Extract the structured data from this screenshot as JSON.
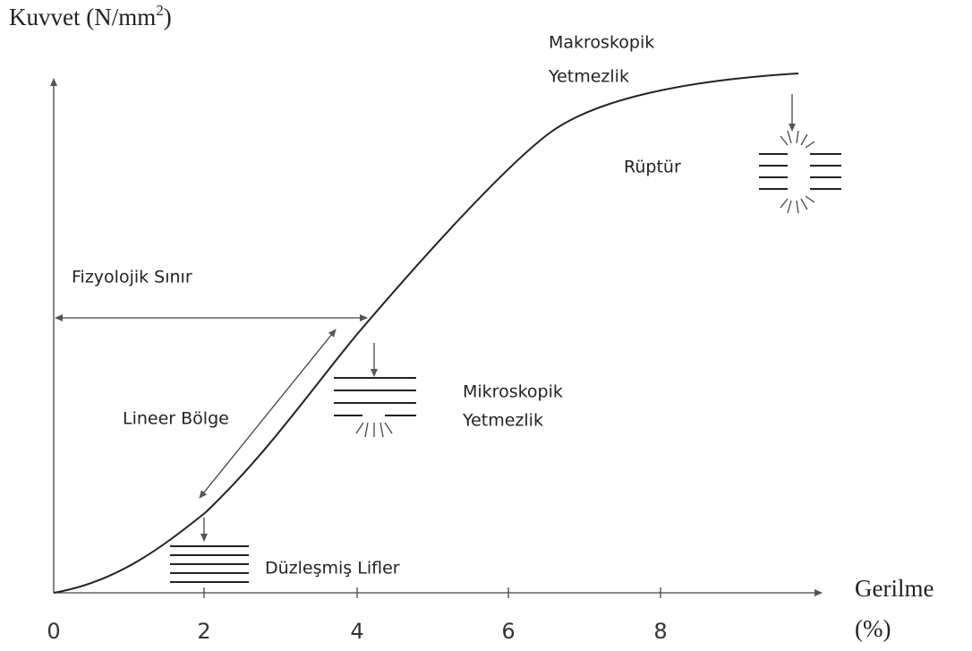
{
  "y_axis": {
    "label": "Kuvvet (N/mm",
    "label_sup": "2",
    "label_end": ")"
  },
  "x_axis": {
    "label": "Gerilme",
    "unit": "(%)",
    "ticks": [
      "0",
      "2",
      "4",
      "6",
      "8"
    ]
  },
  "annotations": {
    "macro_failure": [
      "Makroskopik",
      "Yetmezlik"
    ],
    "rupture": "Rüptür",
    "physiological_limit": "Fizyolojik Sınır",
    "linear_region": "Lineer Bölge",
    "micro_failure": [
      "Mikroskopik",
      "Yetmezlik"
    ],
    "straightened_fibers": "Düzleşmiş Lifler"
  }
}
